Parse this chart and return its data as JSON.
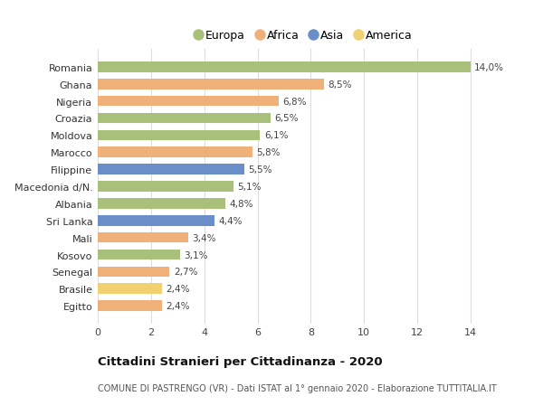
{
  "countries": [
    "Romania",
    "Ghana",
    "Nigeria",
    "Croazia",
    "Moldova",
    "Marocco",
    "Filippine",
    "Macedonia d/N.",
    "Albania",
    "Sri Lanka",
    "Mali",
    "Kosovo",
    "Senegal",
    "Brasile",
    "Egitto"
  ],
  "values": [
    14.0,
    8.5,
    6.8,
    6.5,
    6.1,
    5.8,
    5.5,
    5.1,
    4.8,
    4.4,
    3.4,
    3.1,
    2.7,
    2.4,
    2.4
  ],
  "labels": [
    "14,0%",
    "8,5%",
    "6,8%",
    "6,5%",
    "6,1%",
    "5,8%",
    "5,5%",
    "5,1%",
    "4,8%",
    "4,4%",
    "3,4%",
    "3,1%",
    "2,7%",
    "2,4%",
    "2,4%"
  ],
  "continents": [
    "Europa",
    "Africa",
    "Africa",
    "Europa",
    "Europa",
    "Africa",
    "Asia",
    "Europa",
    "Europa",
    "Asia",
    "Africa",
    "Europa",
    "Africa",
    "America",
    "Africa"
  ],
  "colors": {
    "Europa": "#a8c07a",
    "Africa": "#f0b07a",
    "Asia": "#6a8fc8",
    "America": "#f0d070"
  },
  "legend_order": [
    "Europa",
    "Africa",
    "Asia",
    "America"
  ],
  "title": "Cittadini Stranieri per Cittadinanza - 2020",
  "subtitle": "COMUNE DI PASTRENGO (VR) - Dati ISTAT al 1° gennaio 2020 - Elaborazione TUTTITALIA.IT",
  "xlim": [
    0,
    15.5
  ],
  "xticks": [
    0,
    2,
    4,
    6,
    8,
    10,
    12,
    14
  ],
  "bg_color": "#ffffff",
  "grid_color": "#dddddd",
  "bar_height": 0.62
}
